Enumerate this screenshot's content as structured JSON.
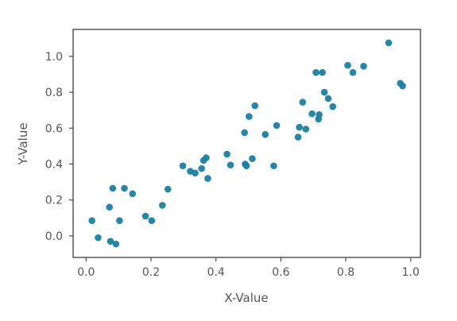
{
  "chart_data": {
    "type": "scatter",
    "title": "",
    "xlabel": "X-Value",
    "ylabel": "Y-Value",
    "xlim": [
      -0.04,
      1.03
    ],
    "ylim": [
      -0.12,
      1.15
    ],
    "xticks": [
      0.0,
      0.2,
      0.4,
      0.6,
      0.8,
      1.0
    ],
    "xtick_labels": [
      "0.0",
      "0.2",
      "0.4",
      "0.6",
      "0.8",
      "1.0"
    ],
    "yticks": [
      0.0,
      0.2,
      0.4,
      0.6,
      0.8,
      1.0
    ],
    "ytick_labels": [
      "0.0",
      "0.2",
      "0.4",
      "0.6",
      "0.8",
      "1.0"
    ],
    "grid": false,
    "legend": false,
    "point_color": "#1a7f9f",
    "series": [
      {
        "points": [
          [
            0.018,
            0.085
          ],
          [
            0.037,
            -0.01
          ],
          [
            0.072,
            0.16
          ],
          [
            0.075,
            -0.03
          ],
          [
            0.082,
            0.265
          ],
          [
            0.092,
            -0.045
          ],
          [
            0.103,
            0.085
          ],
          [
            0.118,
            0.265
          ],
          [
            0.143,
            0.235
          ],
          [
            0.183,
            0.11
          ],
          [
            0.202,
            0.085
          ],
          [
            0.235,
            0.17
          ],
          [
            0.252,
            0.26
          ],
          [
            0.298,
            0.39
          ],
          [
            0.321,
            0.36
          ],
          [
            0.336,
            0.35
          ],
          [
            0.356,
            0.375
          ],
          [
            0.362,
            0.42
          ],
          [
            0.37,
            0.435
          ],
          [
            0.375,
            0.32
          ],
          [
            0.434,
            0.455
          ],
          [
            0.445,
            0.395
          ],
          [
            0.488,
            0.575
          ],
          [
            0.49,
            0.4
          ],
          [
            0.494,
            0.39
          ],
          [
            0.502,
            0.665
          ],
          [
            0.512,
            0.43
          ],
          [
            0.52,
            0.725
          ],
          [
            0.552,
            0.565
          ],
          [
            0.578,
            0.39
          ],
          [
            0.587,
            0.615
          ],
          [
            0.653,
            0.55
          ],
          [
            0.657,
            0.605
          ],
          [
            0.667,
            0.745
          ],
          [
            0.677,
            0.595
          ],
          [
            0.696,
            0.68
          ],
          [
            0.708,
            0.91
          ],
          [
            0.716,
            0.65
          ],
          [
            0.718,
            0.675
          ],
          [
            0.728,
            0.91
          ],
          [
            0.734,
            0.8
          ],
          [
            0.746,
            0.765
          ],
          [
            0.76,
            0.72
          ],
          [
            0.806,
            0.95
          ],
          [
            0.822,
            0.91
          ],
          [
            0.855,
            0.945
          ],
          [
            0.932,
            1.075
          ],
          [
            0.968,
            0.85
          ],
          [
            0.975,
            0.835
          ]
        ]
      }
    ]
  }
}
